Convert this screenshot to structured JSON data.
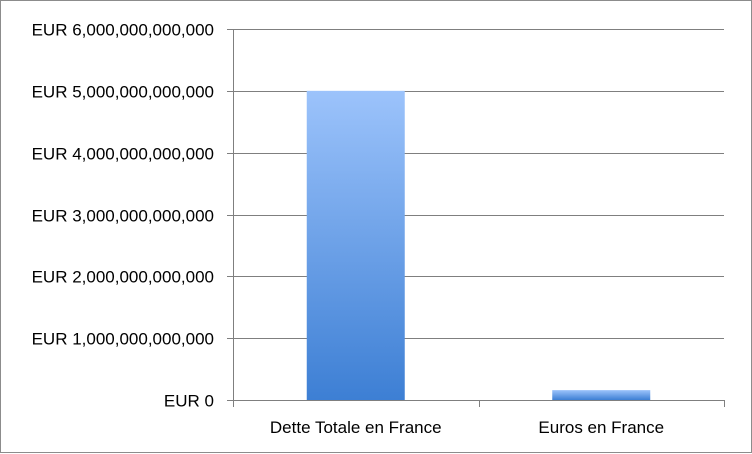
{
  "chart_data": {
    "type": "bar",
    "title": "",
    "xlabel": "",
    "ylabel": "",
    "categories": [
      "Dette Totale en France",
      "Euros en France"
    ],
    "values": [
      5000000000000,
      160000000000
    ],
    "ylim": [
      0,
      6000000000000
    ],
    "yticks": [
      0,
      1000000000000,
      2000000000000,
      3000000000000,
      4000000000000,
      5000000000000,
      6000000000000
    ],
    "ytick_labels": [
      "EUR 0",
      "EUR 1,000,000,000,000",
      "EUR 2,000,000,000,000",
      "EUR 3,000,000,000,000",
      "EUR 4,000,000,000,000",
      "EUR 5,000,000,000,000",
      "EUR 6,000,000,000,000"
    ],
    "grid": true,
    "legend": "none",
    "colors": {
      "bar_top": "#9cc3fb",
      "bar_bottom": "#3d7fd4",
      "grid": "#7f7f7f",
      "axis": "#7f7f7f"
    }
  }
}
